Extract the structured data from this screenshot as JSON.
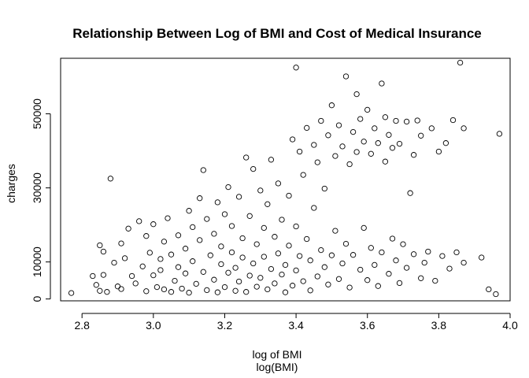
{
  "chart_data": {
    "type": "scatter",
    "title": "Relationship Between Log of BMI and Cost of Medical Insurance",
    "xlabel": "log of BMI",
    "xlabel_sub": "log(BMI)",
    "ylabel": "charges",
    "xlim": [
      2.74,
      4.0
    ],
    "ylim": [
      -500,
      65000
    ],
    "x_ticks": [
      2.8,
      3.0,
      3.2,
      3.4,
      3.6,
      3.8,
      4.0
    ],
    "y_ticks": [
      0,
      10000,
      30000,
      50000
    ],
    "x_tick_labels": [
      "2.8",
      "3.0",
      "3.2",
      "3.4",
      "3.6",
      "3.8",
      "4.0"
    ],
    "y_tick_labels": [
      "0",
      "10000",
      "30000",
      "50000"
    ],
    "series": [
      {
        "marker": "open-circle",
        "color": "#000000",
        "points": [
          [
            2.77,
            1600
          ],
          [
            2.83,
            6200
          ],
          [
            2.84,
            3800
          ],
          [
            2.85,
            14500
          ],
          [
            2.85,
            2200
          ],
          [
            2.86,
            12800
          ],
          [
            2.86,
            6500
          ],
          [
            2.87,
            1900
          ],
          [
            2.88,
            32500
          ],
          [
            2.89,
            9800
          ],
          [
            2.9,
            3400
          ],
          [
            2.91,
            2700
          ],
          [
            2.91,
            15000
          ],
          [
            2.92,
            11000
          ],
          [
            2.93,
            19000
          ],
          [
            2.94,
            6200
          ],
          [
            2.95,
            4200
          ],
          [
            2.96,
            21000
          ],
          [
            2.97,
            8800
          ],
          [
            2.98,
            2100
          ],
          [
            2.98,
            17000
          ],
          [
            2.99,
            12500
          ],
          [
            3.0,
            6400
          ],
          [
            3.0,
            20200
          ],
          [
            3.01,
            3200
          ],
          [
            3.02,
            10800
          ],
          [
            3.02,
            7800
          ],
          [
            3.03,
            2600
          ],
          [
            3.03,
            15500
          ],
          [
            3.04,
            21800
          ],
          [
            3.05,
            1900
          ],
          [
            3.05,
            12000
          ],
          [
            3.06,
            4900
          ],
          [
            3.07,
            8600
          ],
          [
            3.07,
            17200
          ],
          [
            3.08,
            2800
          ],
          [
            3.09,
            13600
          ],
          [
            3.09,
            6900
          ],
          [
            3.1,
            23800
          ],
          [
            3.1,
            1700
          ],
          [
            3.11,
            10200
          ],
          [
            3.11,
            19400
          ],
          [
            3.12,
            4100
          ],
          [
            3.13,
            15900
          ],
          [
            3.13,
            27200
          ],
          [
            3.14,
            34800
          ],
          [
            3.14,
            7300
          ],
          [
            3.15,
            2400
          ],
          [
            3.15,
            21600
          ],
          [
            3.16,
            11800
          ],
          [
            3.17,
            5200
          ],
          [
            3.17,
            17600
          ],
          [
            3.18,
            26100
          ],
          [
            3.18,
            1800
          ],
          [
            3.19,
            9400
          ],
          [
            3.19,
            14200
          ],
          [
            3.2,
            3200
          ],
          [
            3.2,
            22900
          ],
          [
            3.21,
            7100
          ],
          [
            3.21,
            30200
          ],
          [
            3.22,
            12600
          ],
          [
            3.22,
            19700
          ],
          [
            3.23,
            2200
          ],
          [
            3.23,
            8400
          ],
          [
            3.24,
            27600
          ],
          [
            3.24,
            4700
          ],
          [
            3.25,
            16400
          ],
          [
            3.25,
            11200
          ],
          [
            3.26,
            38200
          ],
          [
            3.26,
            1900
          ],
          [
            3.27,
            6300
          ],
          [
            3.27,
            22400
          ],
          [
            3.28,
            35100
          ],
          [
            3.28,
            9600
          ],
          [
            3.29,
            3300
          ],
          [
            3.29,
            14800
          ],
          [
            3.3,
            29300
          ],
          [
            3.3,
            5700
          ],
          [
            3.31,
            19200
          ],
          [
            3.31,
            11400
          ],
          [
            3.32,
            2600
          ],
          [
            3.32,
            25600
          ],
          [
            3.33,
            8100
          ],
          [
            3.33,
            37600
          ],
          [
            3.34,
            4200
          ],
          [
            3.34,
            16800
          ],
          [
            3.35,
            12300
          ],
          [
            3.35,
            31200
          ],
          [
            3.36,
            6600
          ],
          [
            3.36,
            21400
          ],
          [
            3.37,
            1800
          ],
          [
            3.37,
            9200
          ],
          [
            3.38,
            27900
          ],
          [
            3.38,
            14400
          ],
          [
            3.39,
            3600
          ],
          [
            3.39,
            43100
          ],
          [
            3.4,
            7700
          ],
          [
            3.4,
            62500
          ],
          [
            3.4,
            19600
          ],
          [
            3.41,
            11600
          ],
          [
            3.41,
            39800
          ],
          [
            3.42,
            4800
          ],
          [
            3.42,
            33500
          ],
          [
            3.43,
            16200
          ],
          [
            3.43,
            46200
          ],
          [
            3.44,
            2300
          ],
          [
            3.44,
            10400
          ],
          [
            3.45,
            41600
          ],
          [
            3.45,
            24600
          ],
          [
            3.46,
            6100
          ],
          [
            3.46,
            36900
          ],
          [
            3.47,
            13200
          ],
          [
            3.47,
            48100
          ],
          [
            3.48,
            8600
          ],
          [
            3.48,
            29800
          ],
          [
            3.49,
            3900
          ],
          [
            3.49,
            44200
          ],
          [
            3.5,
            11800
          ],
          [
            3.5,
            52300
          ],
          [
            3.51,
            18400
          ],
          [
            3.51,
            38600
          ],
          [
            3.52,
            5400
          ],
          [
            3.52,
            46900
          ],
          [
            3.53,
            9600
          ],
          [
            3.53,
            41200
          ],
          [
            3.54,
            60100
          ],
          [
            3.54,
            14900
          ],
          [
            3.55,
            36400
          ],
          [
            3.55,
            3100
          ],
          [
            3.56,
            45100
          ],
          [
            3.56,
            11900
          ],
          [
            3.57,
            55300
          ],
          [
            3.57,
            39700
          ],
          [
            3.58,
            7900
          ],
          [
            3.58,
            48600
          ],
          [
            3.59,
            19200
          ],
          [
            3.59,
            42500
          ],
          [
            3.6,
            5100
          ],
          [
            3.6,
            51100
          ],
          [
            3.61,
            13800
          ],
          [
            3.61,
            39200
          ],
          [
            3.62,
            9200
          ],
          [
            3.62,
            46100
          ],
          [
            3.63,
            3500
          ],
          [
            3.63,
            42100
          ],
          [
            3.64,
            58200
          ],
          [
            3.64,
            12600
          ],
          [
            3.65,
            49100
          ],
          [
            3.65,
            37100
          ],
          [
            3.66,
            6800
          ],
          [
            3.66,
            44300
          ],
          [
            3.67,
            16300
          ],
          [
            3.67,
            40800
          ],
          [
            3.68,
            10400
          ],
          [
            3.68,
            48100
          ],
          [
            3.69,
            4300
          ],
          [
            3.69,
            41900
          ],
          [
            3.7,
            14800
          ],
          [
            3.71,
            47900
          ],
          [
            3.71,
            8400
          ],
          [
            3.72,
            28600
          ],
          [
            3.73,
            38900
          ],
          [
            3.73,
            12100
          ],
          [
            3.74,
            48200
          ],
          [
            3.75,
            5600
          ],
          [
            3.75,
            44100
          ],
          [
            3.76,
            9800
          ],
          [
            3.77,
            12800
          ],
          [
            3.78,
            46100
          ],
          [
            3.79,
            4900
          ],
          [
            3.8,
            39800
          ],
          [
            3.81,
            11600
          ],
          [
            3.82,
            42100
          ],
          [
            3.83,
            8200
          ],
          [
            3.84,
            48300
          ],
          [
            3.85,
            12600
          ],
          [
            3.86,
            63800
          ],
          [
            3.87,
            9800
          ],
          [
            3.87,
            46100
          ],
          [
            3.92,
            11200
          ],
          [
            3.94,
            2600
          ],
          [
            3.96,
            1300
          ],
          [
            3.97,
            44600
          ]
        ]
      }
    ]
  }
}
